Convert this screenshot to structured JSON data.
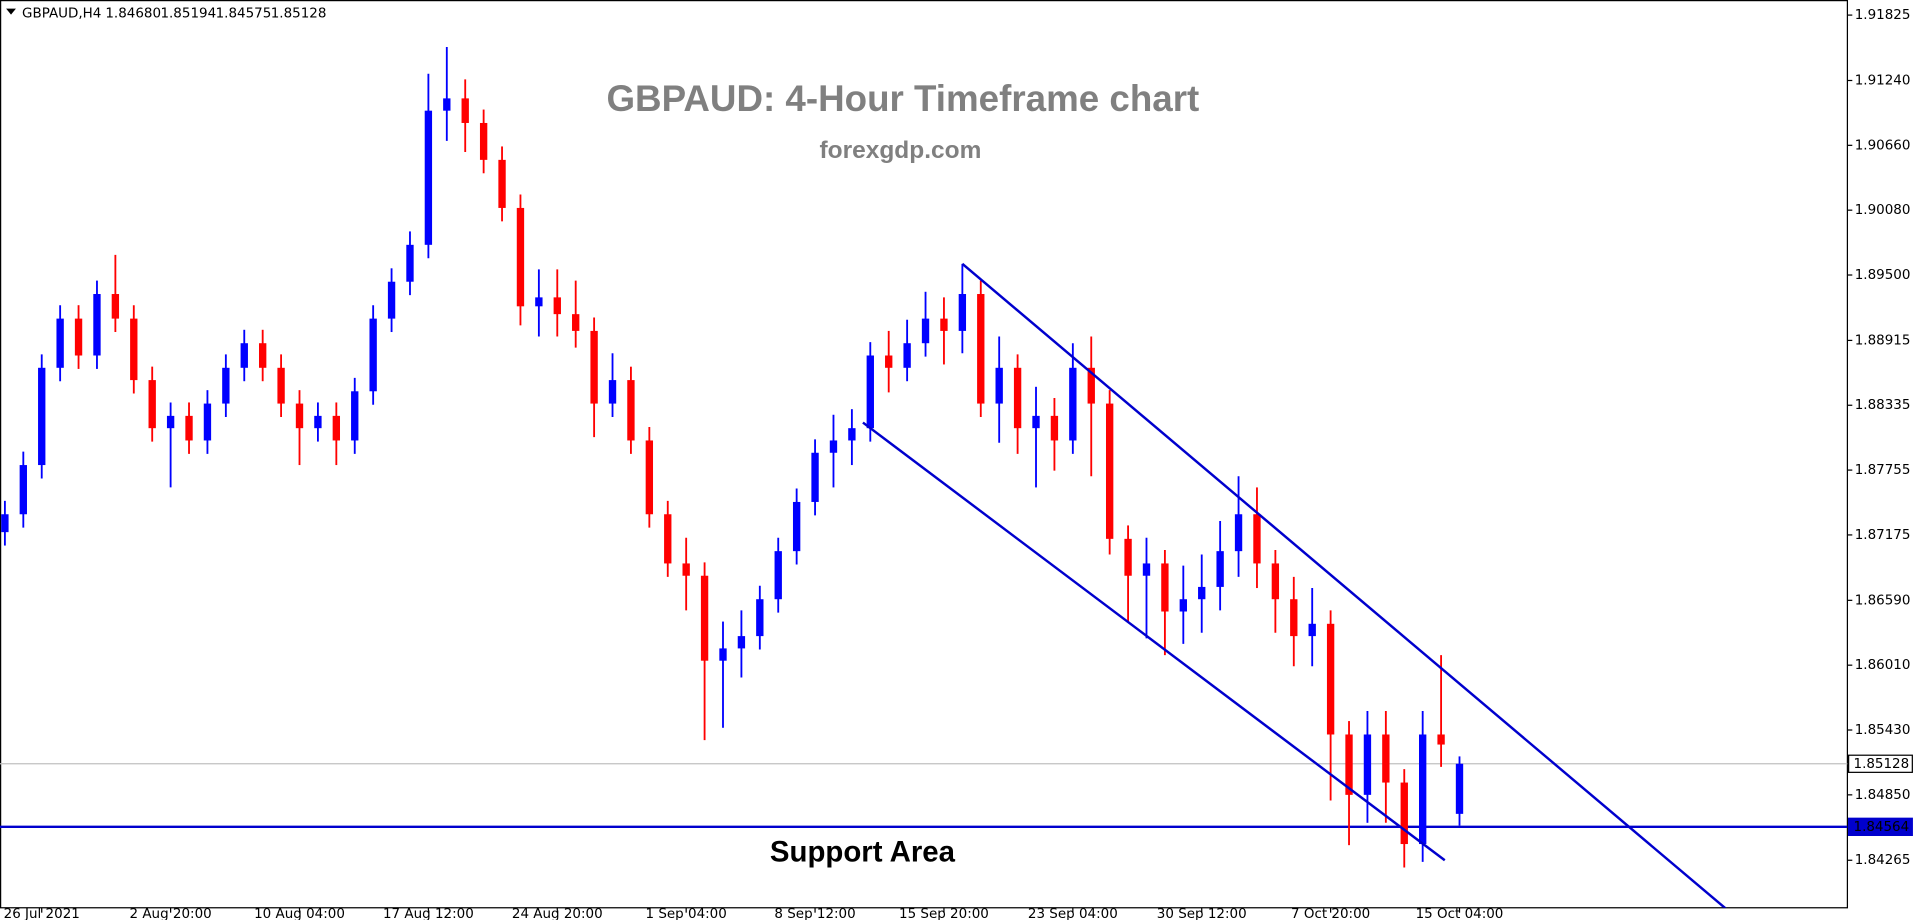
{
  "chart_data": {
    "type": "candlestick",
    "title": "GBPAUD: 4-Hour Timeframe chart",
    "subtitle": "forexgdp.com",
    "annotation": "Support Area",
    "header": {
      "symbol": "GBPAUD,H4",
      "ohlc_labels": [
        "1.84680",
        "1.85194",
        "1.84575",
        "1.85128"
      ]
    },
    "colors": {
      "up": "#0000ff",
      "down": "#ff0000",
      "channel": "#0000cd"
    },
    "categories": [
      null,
      null,
      "26 Jul 2021",
      null,
      null,
      null,
      null,
      null,
      null,
      "2 Aug 20:00",
      null,
      null,
      null,
      null,
      null,
      null,
      "10 Aug 04:00",
      null,
      null,
      null,
      null,
      null,
      null,
      "17 Aug 12:00",
      null,
      null,
      null,
      null,
      null,
      null,
      "24 Aug 20:00",
      null,
      null,
      null,
      null,
      null,
      null,
      "1 Sep 04:00",
      null,
      null,
      null,
      null,
      null,
      null,
      "8 Sep 12:00",
      null,
      null,
      null,
      null,
      null,
      null,
      "15 Sep 20:00",
      null,
      null,
      null,
      null,
      null,
      null,
      "23 Sep 04:00",
      null,
      null,
      null,
      null,
      null,
      null,
      "30 Sep 12:00",
      null,
      null,
      null,
      null,
      null,
      null,
      "7 Oct 20:00",
      null,
      null,
      null,
      null,
      null,
      null,
      "15 Oct 04:00"
    ],
    "open": [
      1.872,
      1.8736,
      1.878,
      1.8867,
      1.8911,
      1.8878,
      1.8933,
      1.8911,
      1.8856,
      1.8813,
      1.8824,
      1.8802,
      1.8835,
      1.8867,
      1.8889,
      1.8867,
      1.8835,
      1.8813,
      1.8824,
      1.8802,
      1.8846,
      1.8911,
      1.8944,
      1.8977,
      1.9097,
      1.9108,
      1.9086,
      1.9053,
      1.901,
      1.8922,
      1.893,
      1.8915,
      1.89,
      1.8835,
      1.8856,
      1.8802,
      1.8736,
      1.8692,
      1.8681,
      1.8605,
      1.8616,
      1.8627,
      1.866,
      1.8703,
      1.8747,
      1.8791,
      1.8802,
      1.8813,
      1.8878,
      1.8867,
      1.8889,
      1.8911,
      1.89,
      1.8933,
      1.8835,
      1.8867,
      1.8813,
      1.8824,
      1.8802,
      1.8867,
      1.8835,
      1.8714,
      1.8681,
      1.8692,
      1.8649,
      1.866,
      1.8671,
      1.8703,
      1.8736,
      1.8692,
      1.866,
      1.8627,
      1.8638,
      1.8539,
      1.8485,
      1.8539,
      1.8496,
      1.8441,
      1.8539,
      1.8468
    ],
    "high": [
      1.8748,
      1.8792,
      1.8879,
      1.8923,
      1.8923,
      1.8945,
      1.8968,
      1.8923,
      1.8868,
      1.8836,
      1.8836,
      1.8847,
      1.8879,
      1.8901,
      1.8901,
      1.8879,
      1.8847,
      1.8836,
      1.8836,
      1.8858,
      1.8923,
      1.8956,
      1.8989,
      1.913,
      1.9154,
      1.9125,
      1.9098,
      1.9065,
      1.9022,
      1.8955,
      1.8955,
      1.8945,
      1.8912,
      1.888,
      1.8868,
      1.8814,
      1.8748,
      1.8715,
      1.8693,
      1.864,
      1.865,
      1.8672,
      1.8715,
      1.8759,
      1.8803,
      1.8825,
      1.883,
      1.889,
      1.89,
      1.891,
      1.8935,
      1.893,
      1.896,
      1.8945,
      1.8895,
      1.8879,
      1.885,
      1.884,
      1.8889,
      1.8895,
      1.8847,
      1.8726,
      1.8715,
      1.8704,
      1.869,
      1.87,
      1.873,
      1.877,
      1.876,
      1.8704,
      1.868,
      1.867,
      1.865,
      1.8551,
      1.856,
      1.856,
      1.8508,
      1.856,
      1.861,
      1.85194
    ],
    "low": [
      1.8708,
      1.8724,
      1.8768,
      1.8855,
      1.8866,
      1.8866,
      1.8899,
      1.8844,
      1.8801,
      1.876,
      1.879,
      1.879,
      1.8823,
      1.8855,
      1.8855,
      1.8823,
      1.878,
      1.8801,
      1.878,
      1.879,
      1.8834,
      1.8899,
      1.8932,
      1.8965,
      1.907,
      1.906,
      1.9041,
      1.8998,
      1.8905,
      1.8895,
      1.8895,
      1.8885,
      1.8805,
      1.8823,
      1.879,
      1.8724,
      1.868,
      1.865,
      1.8534,
      1.8545,
      1.859,
      1.8615,
      1.8648,
      1.8691,
      1.8735,
      1.876,
      1.878,
      1.8801,
      1.8845,
      1.8855,
      1.8877,
      1.887,
      1.888,
      1.8823,
      1.88,
      1.879,
      1.876,
      1.8775,
      1.879,
      1.877,
      1.87,
      1.864,
      1.8625,
      1.861,
      1.862,
      1.863,
      1.865,
      1.868,
      1.867,
      1.863,
      1.86,
      1.86,
      1.848,
      1.844,
      1.846,
      1.846,
      1.842,
      1.8425,
      1.851,
      1.84575
    ],
    "close": [
      1.8736,
      1.878,
      1.8867,
      1.8911,
      1.8878,
      1.8933,
      1.8911,
      1.8856,
      1.8813,
      1.8824,
      1.8802,
      1.8835,
      1.8867,
      1.8889,
      1.8867,
      1.8835,
      1.8813,
      1.8824,
      1.8802,
      1.8846,
      1.8911,
      1.8944,
      1.8977,
      1.9097,
      1.9108,
      1.9086,
      1.9053,
      1.901,
      1.8922,
      1.893,
      1.8915,
      1.89,
      1.8835,
      1.8856,
      1.8802,
      1.8736,
      1.8692,
      1.8681,
      1.8605,
      1.8616,
      1.8627,
      1.866,
      1.8703,
      1.8747,
      1.8791,
      1.8802,
      1.8813,
      1.8878,
      1.8867,
      1.8889,
      1.8911,
      1.89,
      1.8933,
      1.8835,
      1.8867,
      1.8813,
      1.8824,
      1.8802,
      1.8867,
      1.8835,
      1.8714,
      1.8681,
      1.8692,
      1.8649,
      1.866,
      1.8671,
      1.8703,
      1.8736,
      1.8692,
      1.866,
      1.8627,
      1.8638,
      1.8539,
      1.8485,
      1.8539,
      1.8496,
      1.8441,
      1.8539,
      1.853,
      1.85128
    ],
    "channel_lines": [
      {
        "x": [
          52.0,
          94.2
        ],
        "y": [
          1.896,
          1.8373
        ]
      },
      {
        "x": [
          46.6,
          78.2
        ],
        "y": [
          1.8818,
          1.84265
        ]
      }
    ],
    "price_lines": [
      {
        "value": 1.85128,
        "label": "1.85128",
        "color": "#c0c0c0"
      },
      {
        "value": 1.84564,
        "label": "1.84564",
        "color": "#0000cd"
      }
    ],
    "ylim": [
      1.8384,
      1.9196
    ],
    "yticks": [
      {
        "value": 1.91825,
        "label": "1.91825"
      },
      {
        "value": 1.9124,
        "label": "1.91240"
      },
      {
        "value": 1.9066,
        "label": "1.90660"
      },
      {
        "value": 1.9008,
        "label": "1.90080"
      },
      {
        "value": 1.895,
        "label": "1.89500"
      },
      {
        "value": 1.88915,
        "label": "1.88915"
      },
      {
        "value": 1.88335,
        "label": "1.88335"
      },
      {
        "value": 1.87755,
        "label": "1.87755"
      },
      {
        "value": 1.87175,
        "label": "1.87175"
      },
      {
        "value": 1.8659,
        "label": "1.86590"
      },
      {
        "value": 1.8601,
        "label": "1.86010"
      },
      {
        "value": 1.8543,
        "label": "1.85430"
      },
      {
        "value": 1.8485,
        "label": "1.84850"
      },
      {
        "value": 1.84265,
        "label": "1.84265"
      }
    ]
  }
}
